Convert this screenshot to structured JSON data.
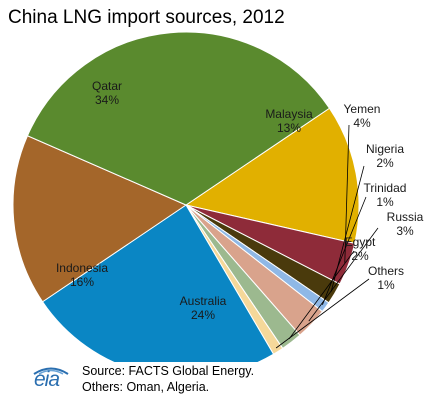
{
  "chart_data": {
    "type": "pie",
    "title": "China LNG import sources, 2012",
    "slices": [
      {
        "label": "Malaysia",
        "pct_label": "13%",
        "value": 13,
        "color": "#e1b000"
      },
      {
        "label": "Yemen",
        "pct_label": "4%",
        "value": 4,
        "color": "#8e2b39"
      },
      {
        "label": "Nigeria",
        "pct_label": "2%",
        "value": 2,
        "color": "#4a3a0c"
      },
      {
        "label": "Trinidad",
        "pct_label": "1%",
        "value": 1,
        "color": "#8fb8e6"
      },
      {
        "label": "Russia",
        "pct_label": "3%",
        "value": 3,
        "color": "#d9a38c"
      },
      {
        "label": "Egypt",
        "pct_label": "2%",
        "value": 2,
        "color": "#9cb98f"
      },
      {
        "label": "Others",
        "pct_label": "1%",
        "value": 1,
        "color": "#f5d89a"
      },
      {
        "label": "Australia",
        "pct_label": "24%",
        "value": 24,
        "color": "#0a86c4"
      },
      {
        "label": "Indonesia",
        "pct_label": "16%",
        "value": 16,
        "color": "#a4662a"
      },
      {
        "label": "Qatar",
        "pct_label": "34%",
        "value": 34,
        "color": "#5a8a2e"
      }
    ]
  },
  "footer": {
    "logo_text": "eia",
    "source_line": "Source: FACTS Global Energy.",
    "others_line": "Others: Oman, Algeria."
  }
}
